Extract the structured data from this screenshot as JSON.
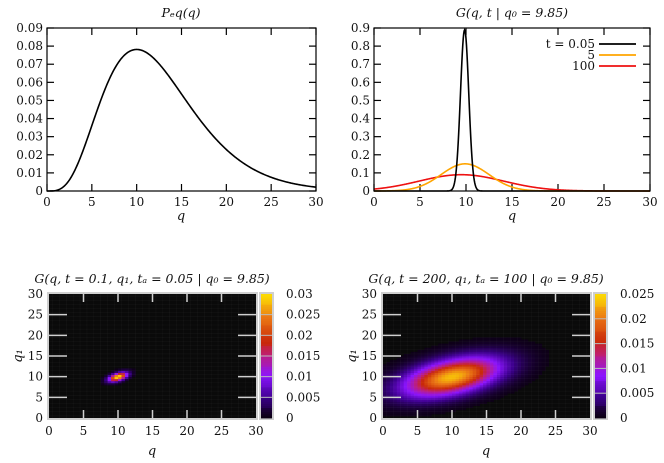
{
  "chart_data": [
    {
      "id": "peq",
      "type": "line",
      "title": "P_eq(q)",
      "xlabel": "q",
      "ylabel": "",
      "xlim": [
        0,
        30
      ],
      "ylim": [
        0,
        0.09
      ],
      "xticks": [
        0,
        5,
        10,
        15,
        20,
        25,
        30
      ],
      "yticks": [
        0,
        0.01,
        0.02,
        0.03,
        0.04,
        0.05,
        0.06,
        0.07,
        0.08,
        0.09
      ],
      "series": [
        {
          "name": "P_eq",
          "color": "#000000",
          "x": [
            0,
            1,
            2,
            3,
            4,
            5,
            6,
            7,
            8,
            9,
            10,
            11,
            12,
            13,
            14,
            15,
            16,
            17,
            18,
            19,
            20,
            21,
            22,
            23,
            24,
            25,
            26,
            27,
            28,
            29,
            30
          ],
          "y": [
            0,
            0.002,
            0.009,
            0.021,
            0.036,
            0.051,
            0.064,
            0.074,
            0.081,
            0.084,
            0.084,
            0.082,
            0.077,
            0.07,
            0.062,
            0.053,
            0.044,
            0.036,
            0.028,
            0.021,
            0.016,
            0.011,
            0.008,
            0.005,
            0.003,
            0.002,
            0.001,
            0.0007,
            0.0004,
            0.0002,
            0.0001
          ]
        }
      ],
      "grid": false
    },
    {
      "id": "green",
      "type": "line",
      "title": "G(q, t | q0 = 9.85)",
      "xlabel": "q",
      "xlim": [
        0,
        30
      ],
      "ylim": [
        0,
        0.9
      ],
      "xticks": [
        0,
        5,
        10,
        15,
        20,
        25,
        30
      ],
      "yticks": [
        0,
        0.1,
        0.2,
        0.3,
        0.4,
        0.5,
        0.6,
        0.7,
        0.8,
        0.9
      ],
      "legend_position": "upper right",
      "series": [
        {
          "name": "t = 0.05",
          "color": "#000000",
          "peak_x": 9.85,
          "peak_y": 0.89,
          "sigma": 0.45
        },
        {
          "name": "5",
          "color": "#ffa500",
          "peak_x": 9.9,
          "peak_y": 0.15,
          "sigma": 2.6
        },
        {
          "name": "100",
          "color": "#ee1111",
          "peak_x": 9.5,
          "peak_y": 0.09,
          "sigma": 4.6
        }
      ],
      "grid": false
    },
    {
      "id": "heat1",
      "type": "heatmap",
      "title": "G(q, t = 0.1, q1, ta = 0.05 | q0 = 9.85)",
      "xlabel": "q",
      "ylabel": "q1",
      "xlim": [
        0,
        30
      ],
      "ylim": [
        0,
        30
      ],
      "xticks": [
        0,
        5,
        10,
        15,
        20,
        25,
        30
      ],
      "yticks": [
        0,
        5,
        10,
        15,
        20,
        25,
        30
      ],
      "colorbar": {
        "min": 0,
        "max": 0.03,
        "ticks": [
          "0",
          "0.005",
          "0.01",
          "0.015",
          "0.02",
          "0.025",
          "0.03"
        ]
      },
      "blob": {
        "cx": 10,
        "cy": 10,
        "sx": 1.0,
        "sy": 0.55,
        "angle_deg": 35,
        "peak": 0.03
      }
    },
    {
      "id": "heat2",
      "type": "heatmap",
      "title": "G(q, t = 200, q1, ta = 100 | q0 = 9.85)",
      "xlabel": "q",
      "ylabel": "q1",
      "xlim": [
        0,
        30
      ],
      "ylim": [
        0,
        30
      ],
      "xticks": [
        0,
        5,
        10,
        15,
        20,
        25,
        30
      ],
      "yticks": [
        0,
        5,
        10,
        15,
        20,
        25,
        30
      ],
      "colorbar": {
        "min": 0,
        "max": 0.025,
        "ticks": [
          "0",
          "0.005",
          "0.01",
          "0.015",
          "0.02",
          "0.025"
        ]
      },
      "blob": {
        "cx": 10,
        "cy": 10,
        "sx": 5.0,
        "sy": 2.6,
        "angle_deg": 25,
        "peak": 0.023
      }
    }
  ]
}
